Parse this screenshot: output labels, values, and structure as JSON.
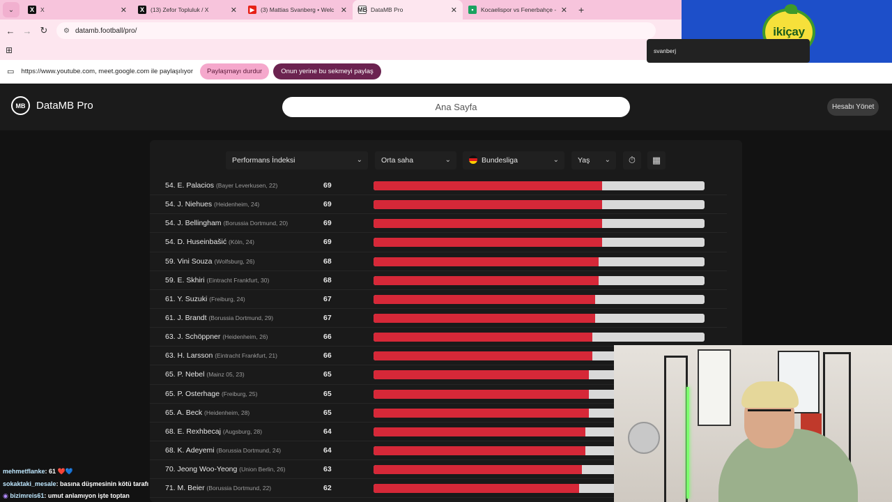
{
  "browser": {
    "tabs": [
      {
        "title": "X",
        "favicon": "x-icon"
      },
      {
        "title": "(13) Zefor Topluluk / X",
        "favicon": "x-icon"
      },
      {
        "title": "(3) Mattias Svanberg • Welc",
        "favicon": "youtube-icon"
      },
      {
        "title": "DataMB Pro",
        "favicon": "datamb-icon",
        "active": true
      },
      {
        "title": "Kocaelispor vs Fenerbahçe - live",
        "favicon": "green-icon"
      }
    ],
    "url": "datamb.football/pro/",
    "share_bar": {
      "text": "https://www.youtube.com, meet.google.com ile paylaşılıyor",
      "stop_label": "Paylaşmayı durdur",
      "share_instead_label": "Onun yerine bu sekmeyi paylaş"
    }
  },
  "overlay": {
    "logo_text": "ikiçay",
    "search_value": "svanberj"
  },
  "app": {
    "brand": "DataMB Pro",
    "brand_logo": "MB",
    "home_search": "Ana Sayfa",
    "account_label": "Hesabı Yönet"
  },
  "filters": {
    "metric": "Performans İndeksi",
    "position": "Orta saha",
    "league": "Bundesliga",
    "age": "Yaş"
  },
  "ranking": {
    "max_score": 100,
    "rows": [
      {
        "rank": "54.",
        "name": "E. Palacios",
        "club": "(Bayer Leverkusen, 22)",
        "score": 69
      },
      {
        "rank": "54.",
        "name": "J. Niehues",
        "club": "(Heidenheim, 24)",
        "score": 69
      },
      {
        "rank": "54.",
        "name": "J. Bellingham",
        "club": "(Borussia Dortmund, 20)",
        "score": 69
      },
      {
        "rank": "54.",
        "name": "D. Huseinbašić",
        "club": "(Köln, 24)",
        "score": 69
      },
      {
        "rank": "59.",
        "name": "Vini Souza",
        "club": "(Wolfsburg, 26)",
        "score": 68
      },
      {
        "rank": "59.",
        "name": "E. Skhiri",
        "club": "(Eintracht Frankfurt, 30)",
        "score": 68
      },
      {
        "rank": "61.",
        "name": "Y. Suzuki",
        "club": "(Freiburg, 24)",
        "score": 67
      },
      {
        "rank": "61.",
        "name": "J. Brandt",
        "club": "(Borussia Dortmund, 29)",
        "score": 67
      },
      {
        "rank": "63.",
        "name": "J. Schöppner",
        "club": "(Heidenheim, 26)",
        "score": 66
      },
      {
        "rank": "63.",
        "name": "H. Larsson",
        "club": "(Eintracht Frankfurt, 21)",
        "score": 66
      },
      {
        "rank": "65.",
        "name": "P. Nebel",
        "club": "(Mainz 05, 23)",
        "score": 65
      },
      {
        "rank": "65.",
        "name": "P. Osterhage",
        "club": "(Freiburg, 25)",
        "score": 65
      },
      {
        "rank": "65.",
        "name": "A. Beck",
        "club": "(Heidenheim, 28)",
        "score": 65
      },
      {
        "rank": "68.",
        "name": "E. Rexhbecaj",
        "club": "(Augsburg, 28)",
        "score": 64
      },
      {
        "rank": "68.",
        "name": "K. Adeyemi",
        "club": "(Borussia Dortmund, 24)",
        "score": 64
      },
      {
        "rank": "70.",
        "name": "Jeong Woo-Yeong",
        "club": "(Union Berlin, 26)",
        "score": 63
      },
      {
        "rank": "71.",
        "name": "M. Beier",
        "club": "(Borussia Dortmund, 22)",
        "score": 62
      }
    ]
  },
  "chat": [
    {
      "user": "mehmetflanke",
      "message": ": 61 ",
      "extra": "❤️💙"
    },
    {
      "user": "sokaktaki_mesale",
      "message": ": basına düşmesinin kötü tarafı",
      "extra": ""
    },
    {
      "user": "bizimreis61",
      "message": ": umut anlamıyon işte toptan",
      "extra": "",
      "badge": true
    }
  ],
  "colors": {
    "bar_fill": "#d62838",
    "bar_track": "#d9d9d9",
    "tabstrip": "#f7c4dc",
    "panel": "#1a1a1a"
  }
}
